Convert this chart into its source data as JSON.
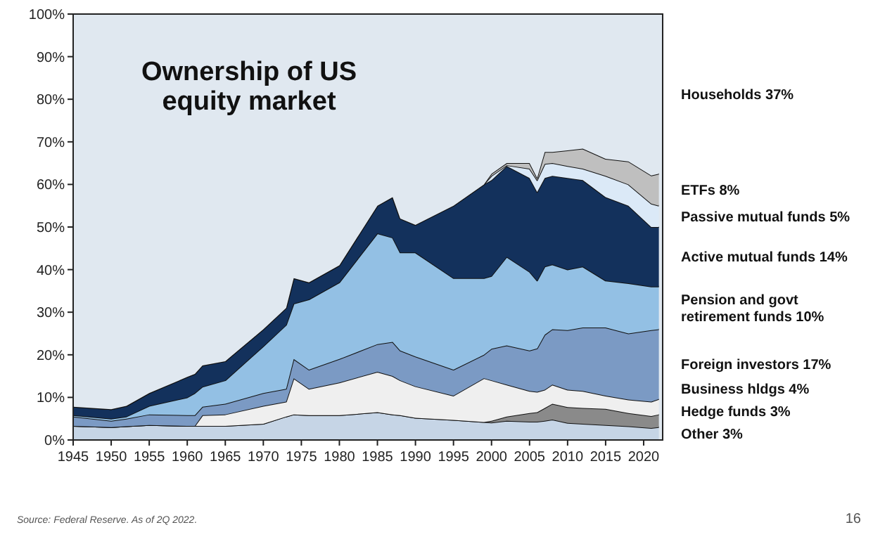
{
  "chart_data": {
    "type": "area",
    "stacked": true,
    "title": "Ownership of US equity market",
    "x": [
      1945,
      1950,
      1952,
      1955,
      1960,
      1961,
      1962,
      1965,
      1970,
      1973,
      1974,
      1976,
      1980,
      1985,
      1987,
      1988,
      1990,
      1995,
      1999,
      2000,
      2002,
      2005,
      2006,
      2007,
      2008,
      2010,
      2012,
      2015,
      2018,
      2021,
      2022
    ],
    "xlim": [
      1945,
      2022.5
    ],
    "xticks": [
      1945,
      1950,
      1955,
      1960,
      1965,
      1970,
      1975,
      1980,
      1985,
      1990,
      1995,
      2000,
      2005,
      2010,
      2015,
      2020
    ],
    "ylim": [
      0,
      100
    ],
    "yticks": [
      {
        "value": 0,
        "label": "0%"
      },
      {
        "value": 10,
        "label": "10%"
      },
      {
        "value": 20,
        "label": "20%"
      },
      {
        "value": 30,
        "label": "30%"
      },
      {
        "value": 40,
        "label": "40%"
      },
      {
        "value": 50,
        "label": "50%"
      },
      {
        "value": 60,
        "label": "60%"
      },
      {
        "value": 70,
        "label": "70%"
      },
      {
        "value": 80,
        "label": "80%"
      },
      {
        "value": 90,
        "label": "90%"
      },
      {
        "value": 100,
        "label": "100%"
      }
    ],
    "grid": false,
    "series": [
      {
        "name": "Other 3%",
        "color": "#c6d5e6",
        "values": [
          3.3,
          3.0,
          3.2,
          3.5,
          3.3,
          3.3,
          3.3,
          3.3,
          3.8,
          5.5,
          6.0,
          5.8,
          5.8,
          6.5,
          6.0,
          5.8,
          5.2,
          4.7,
          4.2,
          4.1,
          4.5,
          4.3,
          4.3,
          4.5,
          4.8,
          4.0,
          3.8,
          3.5,
          3.2,
          2.8,
          3.0
        ]
      },
      {
        "name": "Hedge funds 3%",
        "color": "#8a8a8a",
        "values": [
          0,
          0,
          0,
          0,
          0,
          0,
          0,
          0,
          0,
          0,
          0,
          0,
          0,
          0,
          0,
          0,
          0,
          0,
          0,
          0.4,
          1.0,
          2.0,
          2.2,
          3.0,
          3.7,
          3.7,
          3.7,
          3.8,
          3.1,
          2.8,
          3.0
        ]
      },
      {
        "name": "Business hldgs 4%",
        "color": "#efefef",
        "values": [
          0,
          0,
          0,
          0,
          0,
          0,
          2.5,
          2.7,
          4.2,
          3.5,
          8.5,
          6.2,
          7.7,
          9.5,
          9.0,
          8.2,
          7.4,
          5.7,
          10.3,
          9.5,
          7.5,
          5.2,
          4.8,
          4.3,
          4.5,
          4.1,
          4.0,
          3.1,
          3.2,
          3.4,
          3.6
        ]
      },
      {
        "name": "Foreign investors 17%",
        "color": "#7b9ac4",
        "values": [
          2.2,
          1.5,
          1.8,
          2.5,
          2.5,
          2.5,
          2.0,
          2.5,
          3.0,
          3.0,
          4.5,
          4.5,
          5.5,
          6.5,
          8.0,
          7.0,
          7.0,
          6.1,
          5.5,
          7.4,
          9.2,
          9.5,
          10.2,
          12.9,
          13.0,
          14.0,
          14.9,
          16.0,
          15.5,
          16.8,
          16.4
        ]
      },
      {
        "name": "Pension and govt retirement funds 10%",
        "color": "#93c0e4",
        "values": [
          0.3,
          0.5,
          0.5,
          2.0,
          4.2,
          5.2,
          4.7,
          5.5,
          11.0,
          15.0,
          13.0,
          16.5,
          18.0,
          26.0,
          24.5,
          23.0,
          24.4,
          21.5,
          18.0,
          17.1,
          20.8,
          18.5,
          15.9,
          16.0,
          15.2,
          14.2,
          14.3,
          11.0,
          11.8,
          10.2,
          10.0
        ]
      },
      {
        "name": "Active mutual funds 14%",
        "color": "#13315c",
        "values": [
          2.0,
          2.2,
          2.5,
          3.0,
          4.8,
          4.5,
          5.0,
          4.5,
          4.0,
          4.0,
          6.0,
          4.0,
          4.0,
          6.5,
          9.5,
          8.0,
          6.5,
          17.0,
          22.0,
          22.5,
          21.3,
          22.0,
          20.8,
          20.8,
          20.8,
          21.5,
          20.3,
          19.6,
          18.2,
          14.0,
          14.0
        ]
      },
      {
        "name": "Passive mutual funds 5%",
        "color": "#dbe9f7",
        "values": [
          0,
          0,
          0,
          0,
          0,
          0,
          0,
          0,
          0,
          0,
          0,
          0,
          0,
          0,
          0,
          0,
          0,
          0,
          0,
          1.0,
          0.2,
          2.2,
          2.8,
          3.3,
          3.0,
          2.8,
          2.7,
          5.0,
          5.0,
          5.5,
          5.0
        ]
      },
      {
        "name": "ETFs 8%",
        "color": "#bfbfbf",
        "values": [
          0,
          0,
          0,
          0,
          0,
          0,
          0,
          0,
          0,
          0,
          0,
          0,
          0,
          0,
          0,
          0,
          0,
          0,
          0,
          0.5,
          0.5,
          1.3,
          0.5,
          2.8,
          2.6,
          3.7,
          4.7,
          4.0,
          5.4,
          6.6,
          7.5
        ]
      },
      {
        "name": "Households 37%",
        "color": "#e0e8f0",
        "values": [
          92.2,
          92.8,
          92.0,
          89.0,
          85.2,
          84.5,
          82.5,
          81.5,
          74.0,
          69.0,
          62.0,
          63.0,
          59.0,
          45.0,
          43.0,
          48.0,
          49.5,
          45.0,
          40.0,
          37.5,
          35.0,
          35.0,
          38.5,
          32.4,
          32.4,
          32.0,
          31.6,
          34.0,
          34.6,
          37.9,
          37.5
        ]
      }
    ],
    "annotations": [
      "Source: Federal Reserve. As of 2Q 2022.",
      "16"
    ]
  }
}
